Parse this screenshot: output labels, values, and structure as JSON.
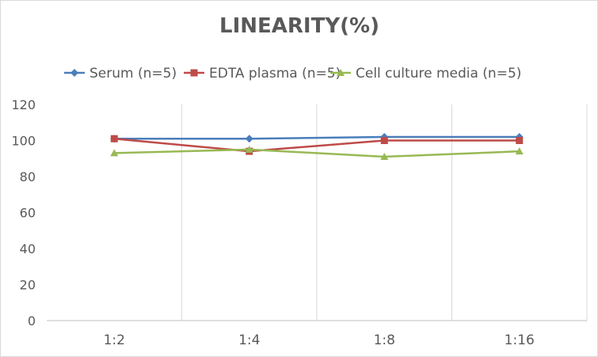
{
  "chart_data": {
    "type": "line",
    "title": "LINEARITY(%)",
    "xlabel": "",
    "ylabel": "",
    "categories": [
      "1:2",
      "1:4",
      "1:8",
      "1:16"
    ],
    "ylim": [
      0,
      120
    ],
    "yticks": [
      0,
      20,
      40,
      60,
      80,
      100,
      120
    ],
    "grid": "vertical",
    "legend_position": "top",
    "series": [
      {
        "name": "Serum (n=5)",
        "values": [
          101,
          101,
          102,
          102
        ],
        "color": "#4a7ebb",
        "marker": "diamond"
      },
      {
        "name": "EDTA plasma (n=5)",
        "values": [
          101,
          94,
          100,
          100
        ],
        "color": "#be4b48",
        "marker": "square"
      },
      {
        "name": "Cell culture media (n=5)",
        "values": [
          93,
          95,
          91,
          94
        ],
        "color": "#98b954",
        "marker": "triangle"
      }
    ]
  }
}
